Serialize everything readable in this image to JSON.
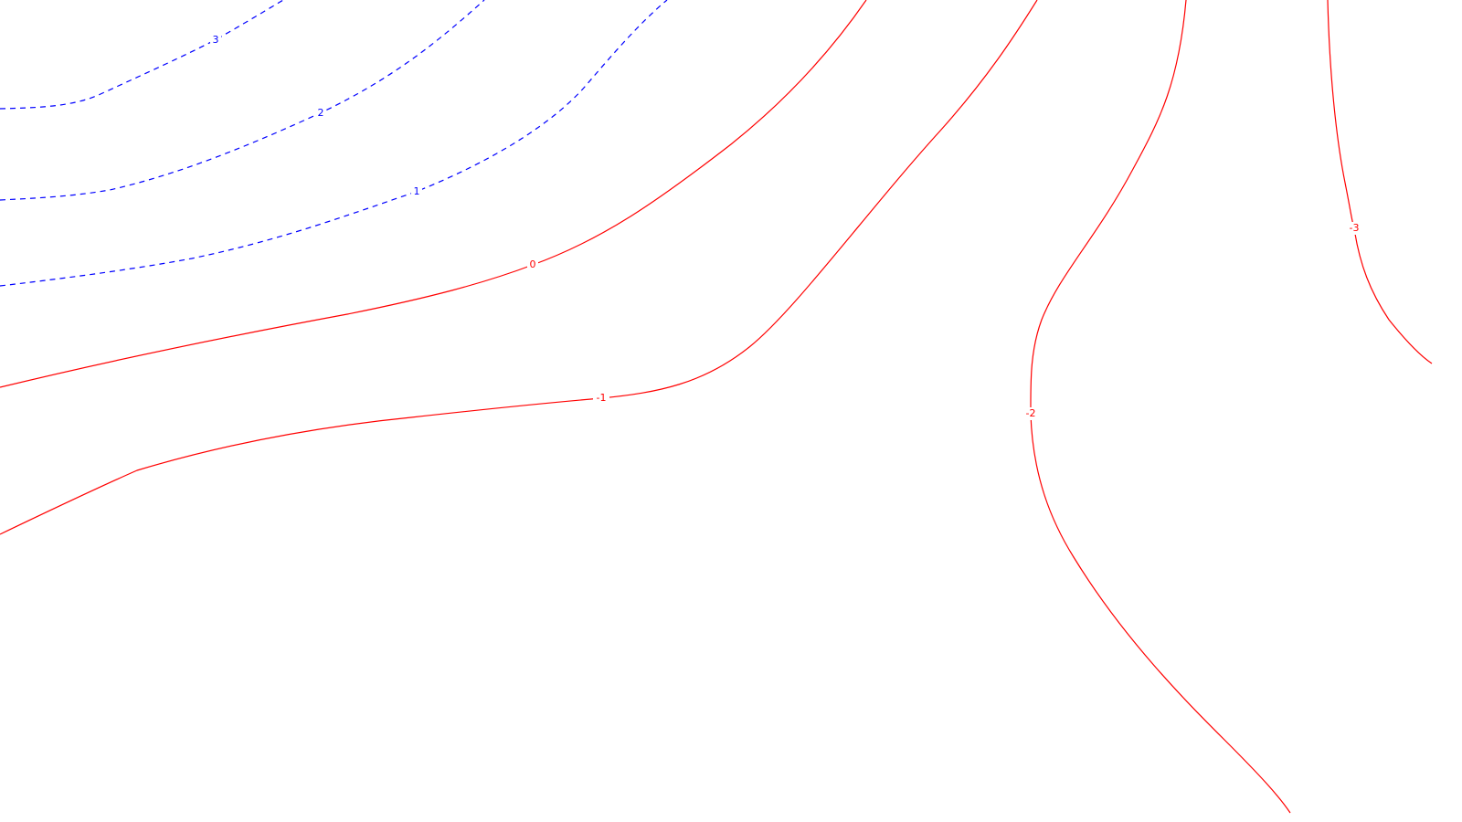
{
  "chart_data": {
    "type": "contour",
    "title": "",
    "xlabel": "",
    "ylabel": "",
    "grid": false,
    "legend": "none",
    "colors": {
      "positive": "#0000ff",
      "non_positive": "#ff0000"
    },
    "line_styles": {
      "positive": "dashed",
      "non_positive": "solid"
    },
    "levels": [
      {
        "level": 3,
        "label": "3"
      },
      {
        "level": 2,
        "label": "2"
      },
      {
        "level": 1,
        "label": "1"
      },
      {
        "level": 0,
        "label": "0"
      },
      {
        "level": -1,
        "label": "-1"
      },
      {
        "level": -2,
        "label": "-2"
      },
      {
        "level": -3,
        "label": "-3"
      }
    ]
  }
}
